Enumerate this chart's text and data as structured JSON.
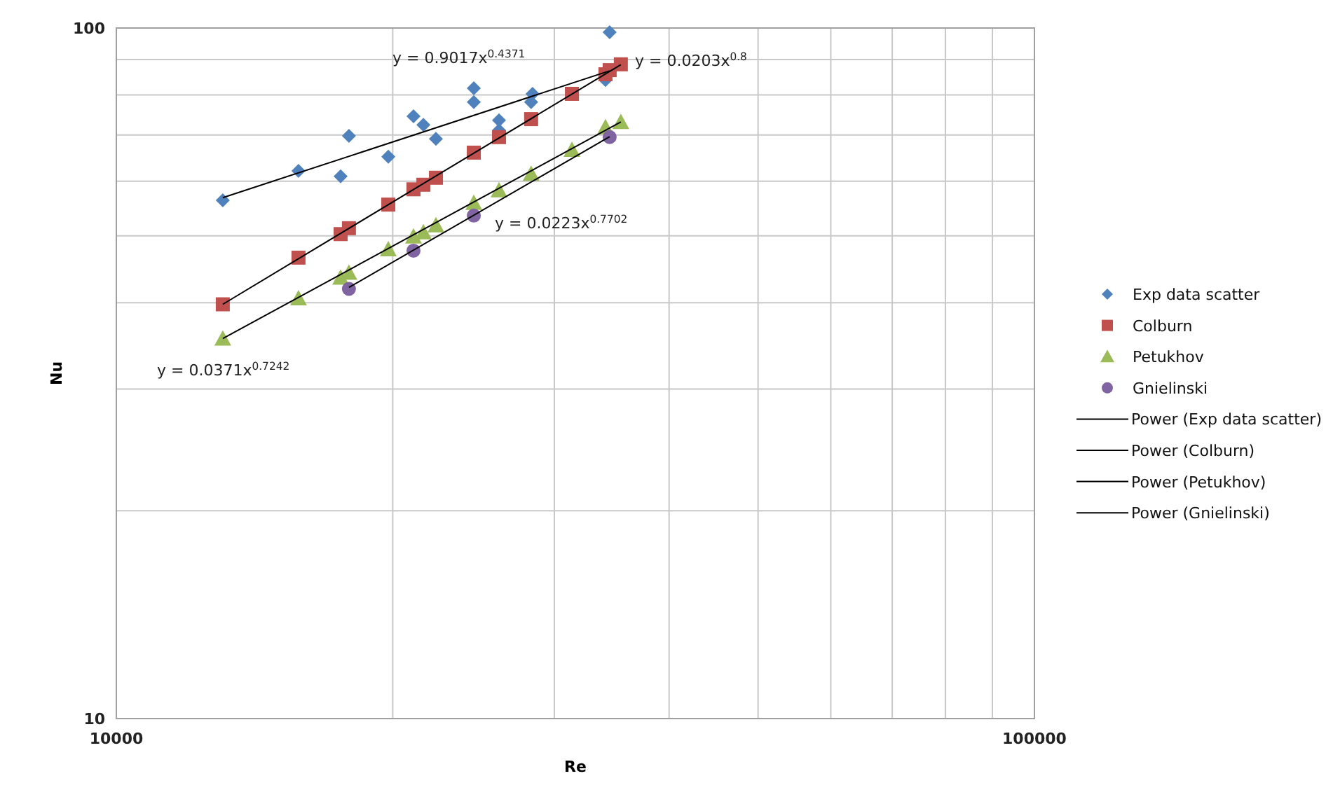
{
  "chart_data": {
    "type": "scatter",
    "xlabel": "Re",
    "ylabel": "Nu",
    "log": "xy",
    "grid": true,
    "legend": "right",
    "xlim": [
      10000,
      100000
    ],
    "xticks": [
      10000,
      {
        "value": 20000,
        "label": null
      },
      {
        "value": 30000,
        "label": null
      },
      {
        "value": 40000,
        "label": null
      },
      {
        "value": 50000,
        "label": null
      },
      {
        "value": 60000,
        "label": null
      },
      {
        "value": 70000,
        "label": null
      },
      {
        "value": 80000,
        "label": null
      },
      {
        "value": 90000,
        "label": null
      },
      100000
    ],
    "ylim": [
      10,
      100
    ],
    "yticks": [
      10,
      {
        "value": 20,
        "label": null
      },
      {
        "value": 30,
        "label": null
      },
      {
        "value": 40,
        "label": null
      },
      {
        "value": 50,
        "label": null
      },
      {
        "value": 60,
        "label": null
      },
      {
        "value": 70,
        "label": null
      },
      {
        "value": 80,
        "label": null
      },
      {
        "value": 90,
        "label": null
      },
      100
    ],
    "series": [
      {
        "name": "Exp data scatter",
        "marker": "diamond",
        "color": "#4f81bd",
        "x": [
          13060,
          15790,
          17550,
          17920,
          19780,
          21070,
          21600,
          22290,
          24510,
          24510,
          26110,
          26110,
          28300,
          28400,
          34100,
          34460
        ],
        "values": [
          56.3,
          62.1,
          61.0,
          69.8,
          65.1,
          74.5,
          72.4,
          69.1,
          81.8,
          78.1,
          73.5,
          71.1,
          78.1,
          80.3,
          84.1,
          98.6
        ]
      },
      {
        "name": "Colburn",
        "marker": "square",
        "color": "#c0504d",
        "x": [
          13060,
          15790,
          17550,
          17920,
          19780,
          21070,
          21600,
          22290,
          24510,
          26110,
          28300,
          31350,
          34100,
          34460,
          35440
        ],
        "values": [
          39.8,
          46.5,
          50.3,
          51.3,
          55.5,
          58.4,
          59.3,
          60.7,
          66.0,
          69.5,
          73.8,
          80.3,
          85.7,
          86.9,
          88.6
        ]
      },
      {
        "name": "Petukhov",
        "marker": "triangle",
        "color": "#9bbb59",
        "x": [
          13060,
          15790,
          17550,
          17920,
          19780,
          21070,
          21600,
          22290,
          24510,
          26110,
          28300,
          31350,
          34100,
          35440
        ],
        "values": [
          35.5,
          40.6,
          43.5,
          44.2,
          47.8,
          49.9,
          50.6,
          51.8,
          55.8,
          58.2,
          61.5,
          66.6,
          71.8,
          73.1
        ]
      },
      {
        "name": "Gnielinski",
        "marker": "circle",
        "color": "#8064a2",
        "x": [
          17920,
          21070,
          24510,
          34460
        ],
        "values": [
          41.9,
          47.6,
          53.5,
          69.5
        ]
      },
      {
        "name": "Power (Exp data scatter)",
        "type": "line",
        "marker": "none",
        "color": "#000000",
        "x": [
          13060,
          34460
        ],
        "values": [
          56.8,
          86.7
        ]
      },
      {
        "name": "Power (Colburn)",
        "type": "line",
        "marker": "none",
        "color": "#000000",
        "x": [
          13060,
          35440
        ],
        "values": [
          39.8,
          88.5
        ]
      },
      {
        "name": "Power (Petukhov)",
        "type": "line",
        "marker": "none",
        "color": "#000000",
        "x": [
          13060,
          35440
        ],
        "values": [
          35.5,
          73.1
        ]
      },
      {
        "name": "Power (Gnielinski)",
        "type": "line",
        "marker": "none",
        "color": "#000000",
        "x": [
          17920,
          34460
        ],
        "values": [
          42.1,
          69.6
        ]
      }
    ],
    "annotations": [
      "y = 0.9017x$^{0.4371}$",
      "y = 0.0203x$^{0.8}$",
      "y = 0.0223x$^{0.7702}$",
      "y = 0.0371x$^{0.7242}$"
    ]
  }
}
